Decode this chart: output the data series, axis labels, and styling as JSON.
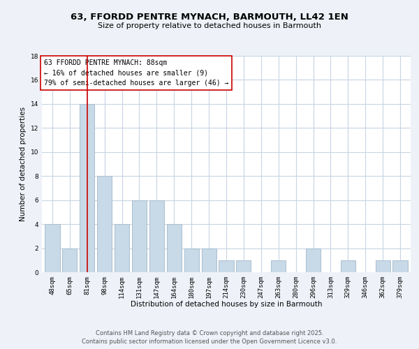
{
  "title": "63, FFORDD PENTRE MYNACH, BARMOUTH, LL42 1EN",
  "subtitle": "Size of property relative to detached houses in Barmouth",
  "xlabel": "Distribution of detached houses by size in Barmouth",
  "ylabel": "Number of detached properties",
  "categories": [
    "48sqm",
    "65sqm",
    "81sqm",
    "98sqm",
    "114sqm",
    "131sqm",
    "147sqm",
    "164sqm",
    "180sqm",
    "197sqm",
    "214sqm",
    "230sqm",
    "247sqm",
    "263sqm",
    "280sqm",
    "296sqm",
    "313sqm",
    "329sqm",
    "346sqm",
    "362sqm",
    "379sqm"
  ],
  "values": [
    4,
    2,
    14,
    8,
    4,
    6,
    6,
    4,
    2,
    2,
    1,
    1,
    0,
    1,
    0,
    2,
    0,
    1,
    0,
    1,
    1
  ],
  "bar_color": "#c8d9e8",
  "bar_edge_color": "#aabfce",
  "highlight_bar_index": 2,
  "highlight_line_color": "#cc0000",
  "ylim": [
    0,
    18
  ],
  "yticks": [
    0,
    2,
    4,
    6,
    8,
    10,
    12,
    14,
    16,
    18
  ],
  "annotation_title": "63 FFORDD PENTRE MYNACH: 88sqm",
  "annotation_line1": "← 16% of detached houses are smaller (9)",
  "annotation_line2": "79% of semi-detached houses are larger (46) →",
  "footer_line1": "Contains HM Land Registry data © Crown copyright and database right 2025.",
  "footer_line2": "Contains public sector information licensed under the Open Government Licence v3.0.",
  "background_color": "#eef2f8",
  "plot_background_color": "#ffffff",
  "grid_color": "#c8d4e4",
  "title_fontsize": 9.5,
  "subtitle_fontsize": 8,
  "axis_label_fontsize": 7.5,
  "tick_fontsize": 6.5,
  "annotation_fontsize": 7,
  "footer_fontsize": 6
}
